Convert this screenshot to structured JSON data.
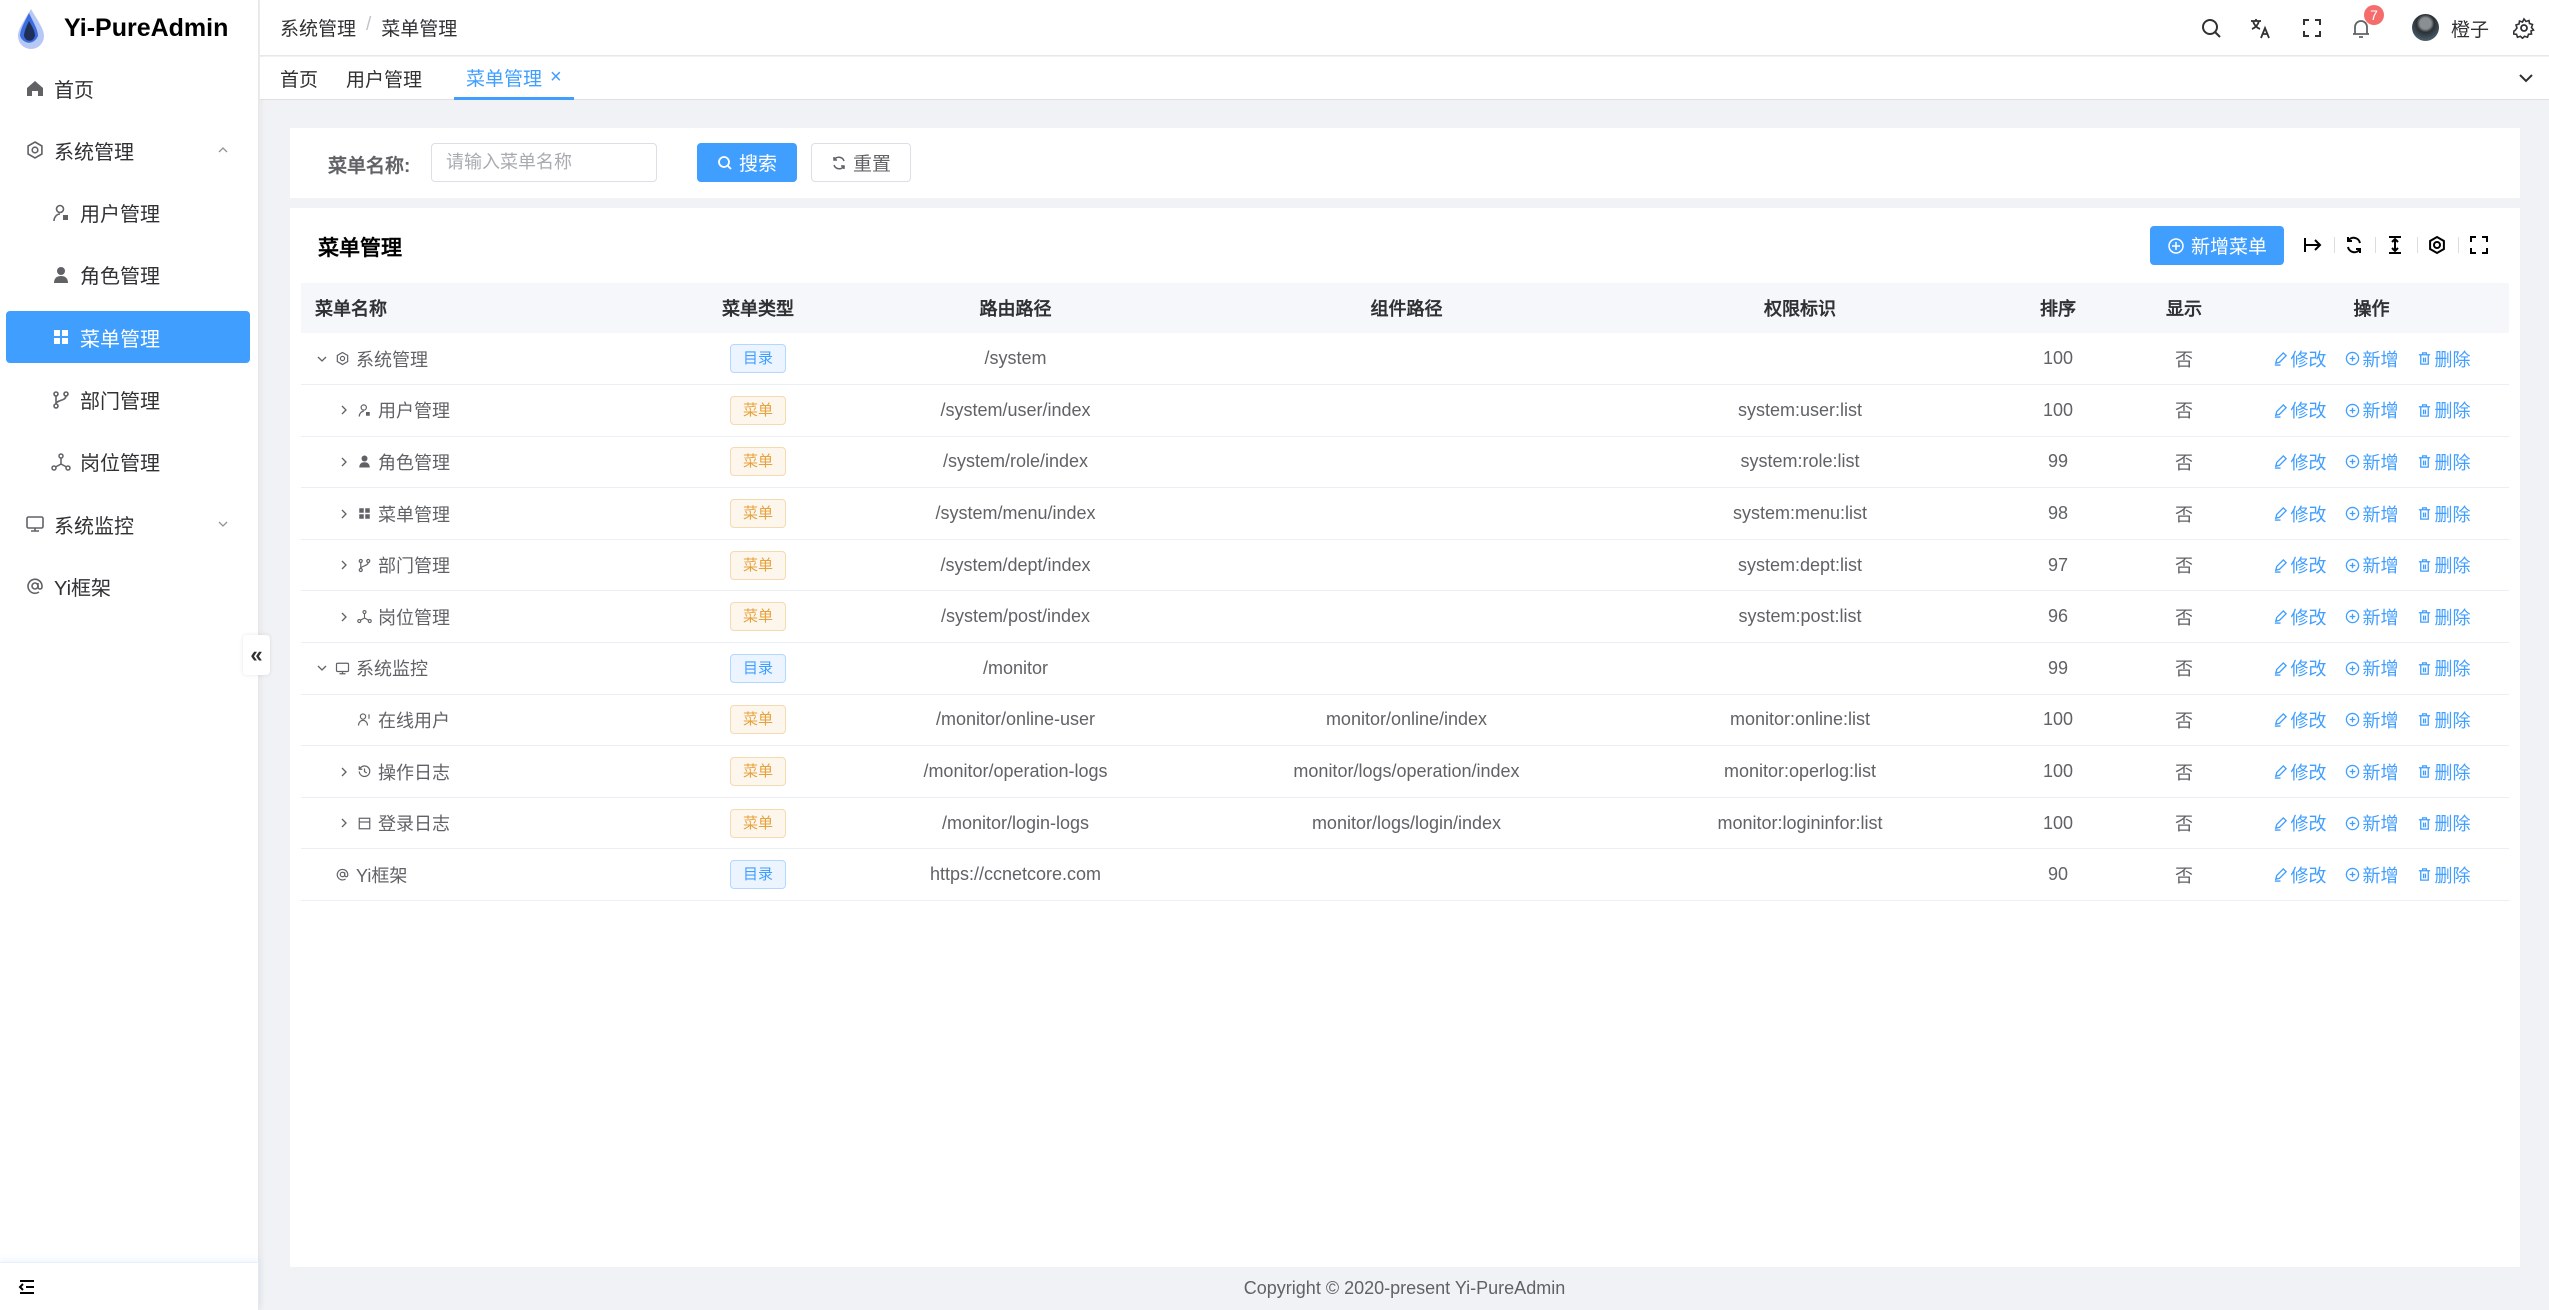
{
  "app": {
    "title": "Yi-PureAdmin"
  },
  "colors": {
    "primary": "#409eff",
    "warning": "#e6a23c",
    "danger": "#f56c6c",
    "background": "#f0f2f5"
  },
  "sidebar": {
    "items": [
      {
        "label": "首页",
        "icon": "home-icon",
        "level": "top"
      },
      {
        "label": "系统管理",
        "icon": "gear-icon",
        "level": "top",
        "expanded": true
      },
      {
        "label": "用户管理",
        "icon": "user-icon",
        "level": "sub"
      },
      {
        "label": "角色管理",
        "icon": "role-icon",
        "level": "sub"
      },
      {
        "label": "菜单管理",
        "icon": "grid-icon",
        "level": "sub",
        "active": true
      },
      {
        "label": "部门管理",
        "icon": "branch-icon",
        "level": "sub"
      },
      {
        "label": "岗位管理",
        "icon": "network-icon",
        "level": "sub"
      },
      {
        "label": "系统监控",
        "icon": "monitor-icon",
        "level": "top",
        "expanded": false
      },
      {
        "label": "Yi框架",
        "icon": "at-icon",
        "level": "top"
      }
    ],
    "collapse_label": "«"
  },
  "header": {
    "breadcrumb": [
      "系统管理",
      "菜单管理"
    ],
    "separator": "/",
    "notification_count": "7",
    "username": "橙子"
  },
  "tabs": [
    {
      "label": "首页"
    },
    {
      "label": "用户管理"
    },
    {
      "label": "菜单管理",
      "active": true,
      "close": "×"
    }
  ],
  "search": {
    "label": "菜单名称:",
    "placeholder": "请输入菜单名称",
    "value": "",
    "search_label": "搜索",
    "reset_label": "重置"
  },
  "table": {
    "title": "菜单管理",
    "add_label": "新增菜单",
    "columns": [
      "菜单名称",
      "菜单类型",
      "路由路径",
      "组件路径",
      "权限标识",
      "排序",
      "显示",
      "操作"
    ],
    "actions": [
      "修改",
      "新增",
      "删除"
    ],
    "rows": [
      {
        "name": "系统管理",
        "icon": "gear-icon",
        "depth": 0,
        "expander": "down",
        "type": "目录",
        "kind": "dir",
        "route": "/system",
        "component": "",
        "perm": "",
        "sort": "100",
        "show": "否"
      },
      {
        "name": "用户管理",
        "icon": "user-icon",
        "depth": 1,
        "expander": "right",
        "type": "菜单",
        "kind": "menu",
        "route": "/system/user/index",
        "component": "",
        "perm": "system:user:list",
        "sort": "100",
        "show": "否"
      },
      {
        "name": "角色管理",
        "icon": "role-icon",
        "depth": 1,
        "expander": "right",
        "type": "菜单",
        "kind": "menu",
        "route": "/system/role/index",
        "component": "",
        "perm": "system:role:list",
        "sort": "99",
        "show": "否"
      },
      {
        "name": "菜单管理",
        "icon": "grid-icon",
        "depth": 1,
        "expander": "right",
        "type": "菜单",
        "kind": "menu",
        "route": "/system/menu/index",
        "component": "",
        "perm": "system:menu:list",
        "sort": "98",
        "show": "否"
      },
      {
        "name": "部门管理",
        "icon": "branch-icon",
        "depth": 1,
        "expander": "right",
        "type": "菜单",
        "kind": "menu",
        "route": "/system/dept/index",
        "component": "",
        "perm": "system:dept:list",
        "sort": "97",
        "show": "否"
      },
      {
        "name": "岗位管理",
        "icon": "network-icon",
        "depth": 1,
        "expander": "right",
        "type": "菜单",
        "kind": "menu",
        "route": "/system/post/index",
        "component": "",
        "perm": "system:post:list",
        "sort": "96",
        "show": "否"
      },
      {
        "name": "系统监控",
        "icon": "monitor-icon",
        "depth": 0,
        "expander": "down",
        "type": "目录",
        "kind": "dir",
        "route": "/monitor",
        "component": "",
        "perm": "",
        "sort": "99",
        "show": "否"
      },
      {
        "name": "在线用户",
        "icon": "online-user-icon",
        "depth": 1,
        "expander": "",
        "type": "菜单",
        "kind": "menu",
        "route": "/monitor/online-user",
        "component": "monitor/online/index",
        "perm": "monitor:online:list",
        "sort": "100",
        "show": "否"
      },
      {
        "name": "操作日志",
        "icon": "history-icon",
        "depth": 1,
        "expander": "right",
        "type": "菜单",
        "kind": "menu",
        "route": "/monitor/operation-logs",
        "component": "monitor/logs/operation/index",
        "perm": "monitor:operlog:list",
        "sort": "100",
        "show": "否"
      },
      {
        "name": "登录日志",
        "icon": "calendar-icon",
        "depth": 1,
        "expander": "right",
        "type": "菜单",
        "kind": "menu",
        "route": "/monitor/login-logs",
        "component": "monitor/logs/login/index",
        "perm": "monitor:logininfor:list",
        "sort": "100",
        "show": "否"
      },
      {
        "name": "Yi框架",
        "icon": "at-icon",
        "depth": 0,
        "expander": "",
        "type": "目录",
        "kind": "dir",
        "route": "https://ccnetcore.com",
        "component": "",
        "perm": "",
        "sort": "90",
        "show": "否"
      }
    ]
  },
  "footer": {
    "copyright": "Copyright © 2020-present Yi-PureAdmin"
  }
}
